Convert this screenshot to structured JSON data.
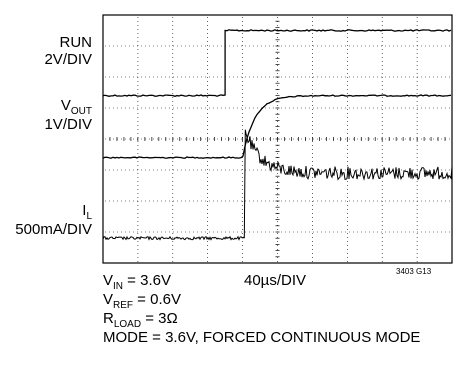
{
  "chart_data": {
    "type": "line",
    "grid": true,
    "grid_divisions": {
      "x": 10,
      "y": 8
    },
    "traces": [
      {
        "name": "RUN",
        "scale": "2V/DIV",
        "baseline_div": 2.6,
        "events": [
          {
            "t_div": 3.5,
            "level_div": 0.5
          }
        ],
        "noise": "low"
      },
      {
        "name": "VOUT",
        "scale": "1V/DIV",
        "baseline_div": 4.6,
        "events": [
          {
            "t_div": 4.0,
            "level_div": 2.6,
            "rise": "rc"
          }
        ],
        "noise": "low"
      },
      {
        "name": "IL",
        "scale": "500mA/DIV",
        "baseline_div": 7.2,
        "events": [
          {
            "t_div": 4.05,
            "peak_div": 3.7,
            "settle_div": 5.1
          }
        ],
        "noise": "high"
      }
    ],
    "timebase": "40µs/DIV"
  },
  "labels": {
    "run_name": "RUN",
    "run_scale": "2V/DIV",
    "vout_main": "V",
    "vout_sub": "OUT",
    "vout_scale": "1V/DIV",
    "il_main": "I",
    "il_sub": "L",
    "il_scale": "500mA/DIV"
  },
  "conditions": {
    "vin_main": "V",
    "vin_sub": "IN",
    "vin_val": " = 3.6V",
    "vref_main": "V",
    "vref_sub": "REF",
    "vref_val": " = 0.6V",
    "rload_main": "R",
    "rload_sub": "LOAD",
    "rload_val": " = 3Ω",
    "mode": "MODE = 3.6V, FORCED CONTINUOUS MODE"
  },
  "timebase": "40µs/DIV",
  "figure_number": "3403 G13"
}
